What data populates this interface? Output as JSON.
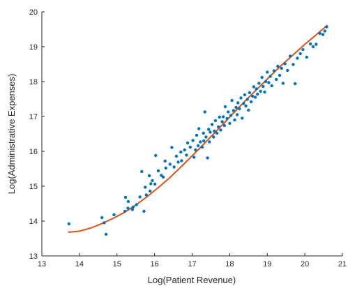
{
  "chart_data": {
    "type": "scatter",
    "xlabel": "Log(Patient Revenue)",
    "ylabel": "Log(Administrative Expenses)",
    "xlim": [
      13,
      21
    ],
    "ylim": [
      13,
      20
    ],
    "xticks": [
      "13",
      "14",
      "15",
      "16",
      "17",
      "18",
      "19",
      "20",
      "21"
    ],
    "yticks": [
      "13",
      "14",
      "15",
      "16",
      "17",
      "18",
      "19",
      "20"
    ],
    "grid": false,
    "colors": {
      "points": "#0072BD",
      "fit_line": "#D95319",
      "axes": "#262626"
    },
    "series": [
      {
        "type": "scatter",
        "points": [
          [
            13.72,
            13.92
          ],
          [
            14.6,
            14.1
          ],
          [
            14.66,
            13.95
          ],
          [
            14.71,
            13.62
          ],
          [
            14.92,
            14.18
          ],
          [
            15.21,
            14.28
          ],
          [
            15.23,
            14.68
          ],
          [
            15.29,
            14.37
          ],
          [
            15.3,
            14.56
          ],
          [
            15.41,
            14.33
          ],
          [
            15.43,
            14.4
          ],
          [
            15.52,
            14.47
          ],
          [
            15.61,
            14.69
          ],
          [
            15.66,
            15.42
          ],
          [
            15.72,
            14.28
          ],
          [
            15.75,
            14.97
          ],
          [
            15.78,
            14.75
          ],
          [
            15.86,
            15.3
          ],
          [
            15.88,
            14.86
          ],
          [
            15.9,
            15.07
          ],
          [
            15.94,
            15.16
          ],
          [
            16.01,
            15.06
          ],
          [
            16.03,
            15.88
          ],
          [
            16.1,
            15.44
          ],
          [
            16.18,
            15.31
          ],
          [
            16.23,
            15.26
          ],
          [
            16.28,
            15.72
          ],
          [
            16.3,
            15.52
          ],
          [
            16.41,
            15.63
          ],
          [
            16.46,
            16.11
          ],
          [
            16.52,
            15.55
          ],
          [
            16.58,
            15.86
          ],
          [
            16.63,
            15.69
          ],
          [
            16.7,
            15.98
          ],
          [
            16.72,
            15.73
          ],
          [
            16.8,
            16.04
          ],
          [
            16.85,
            15.89
          ],
          [
            16.88,
            16.24
          ],
          [
            16.95,
            16.12
          ],
          [
            17.02,
            16.31
          ],
          [
            17.05,
            15.83
          ],
          [
            17.09,
            16.04
          ],
          [
            17.12,
            16.46
          ],
          [
            17.16,
            16.16
          ],
          [
            17.18,
            16.65
          ],
          [
            17.22,
            16.27
          ],
          [
            17.27,
            16.12
          ],
          [
            17.3,
            16.52
          ],
          [
            17.31,
            16.3
          ],
          [
            17.34,
            17.13
          ],
          [
            17.37,
            16.41
          ],
          [
            17.41,
            15.81
          ],
          [
            17.44,
            16.63
          ],
          [
            17.46,
            16.27
          ],
          [
            17.48,
            16.55
          ],
          [
            17.53,
            16.77
          ],
          [
            17.57,
            16.41
          ],
          [
            17.59,
            16.58
          ],
          [
            17.62,
            16.88
          ],
          [
            17.66,
            16.52
          ],
          [
            17.7,
            16.7
          ],
          [
            17.73,
            16.98
          ],
          [
            17.76,
            16.61
          ],
          [
            17.8,
            16.85
          ],
          [
            17.83,
            16.99
          ],
          [
            17.86,
            16.74
          ],
          [
            17.88,
            17.28
          ],
          [
            17.93,
            16.94
          ],
          [
            17.96,
            17.13
          ],
          [
            18.0,
            16.8
          ],
          [
            18.03,
            17.03
          ],
          [
            18.06,
            17.46
          ],
          [
            18.1,
            17.17
          ],
          [
            18.13,
            16.9
          ],
          [
            18.17,
            17.26
          ],
          [
            18.2,
            17.05
          ],
          [
            18.22,
            17.39
          ],
          [
            18.26,
            17.22
          ],
          [
            18.3,
            17.53
          ],
          [
            18.33,
            16.95
          ],
          [
            18.37,
            17.37
          ],
          [
            18.4,
            17.62
          ],
          [
            18.43,
            17.3
          ],
          [
            18.47,
            17.49
          ],
          [
            18.5,
            17.18
          ],
          [
            18.53,
            17.68
          ],
          [
            18.57,
            17.42
          ],
          [
            18.61,
            17.58
          ],
          [
            18.64,
            17.85
          ],
          [
            18.68,
            17.55
          ],
          [
            18.71,
            17.79
          ],
          [
            18.74,
            17.64
          ],
          [
            18.78,
            17.95
          ],
          [
            18.82,
            17.72
          ],
          [
            18.86,
            18.12
          ],
          [
            18.89,
            17.86
          ],
          [
            18.93,
            17.7
          ],
          [
            18.96,
            18.0
          ],
          [
            19.0,
            18.27
          ],
          [
            19.04,
            17.97
          ],
          [
            19.08,
            18.15
          ],
          [
            19.12,
            17.88
          ],
          [
            19.18,
            18.31
          ],
          [
            19.24,
            18.06
          ],
          [
            19.28,
            18.44
          ],
          [
            19.33,
            18.18
          ],
          [
            19.38,
            18.38
          ],
          [
            19.42,
            17.95
          ],
          [
            19.47,
            18.51
          ],
          [
            19.54,
            18.32
          ],
          [
            19.61,
            18.73
          ],
          [
            19.69,
            18.49
          ],
          [
            19.74,
            17.94
          ],
          [
            19.8,
            18.67
          ],
          [
            19.88,
            18.8
          ],
          [
            19.95,
            18.92
          ],
          [
            20.05,
            18.7
          ],
          [
            20.15,
            19.08
          ],
          [
            20.22,
            19.0
          ],
          [
            20.3,
            19.07
          ],
          [
            20.4,
            19.38
          ],
          [
            20.48,
            19.35
          ],
          [
            20.53,
            19.45
          ],
          [
            20.58,
            19.57
          ]
        ]
      },
      {
        "type": "line",
        "points": [
          [
            13.7,
            13.68
          ],
          [
            14.0,
            13.71
          ],
          [
            14.3,
            13.8
          ],
          [
            14.6,
            13.93
          ],
          [
            14.9,
            14.08
          ],
          [
            15.2,
            14.25
          ],
          [
            15.5,
            14.46
          ],
          [
            15.8,
            14.7
          ],
          [
            16.1,
            14.96
          ],
          [
            16.4,
            15.24
          ],
          [
            16.7,
            15.55
          ],
          [
            17.0,
            15.87
          ],
          [
            17.3,
            16.2
          ],
          [
            17.6,
            16.53
          ],
          [
            17.9,
            16.87
          ],
          [
            18.2,
            17.21
          ],
          [
            18.5,
            17.54
          ],
          [
            18.8,
            17.86
          ],
          [
            19.1,
            18.18
          ],
          [
            19.4,
            18.49
          ],
          [
            19.7,
            18.78
          ],
          [
            20.0,
            19.07
          ],
          [
            20.3,
            19.34
          ],
          [
            20.6,
            19.62
          ]
        ]
      }
    ]
  }
}
